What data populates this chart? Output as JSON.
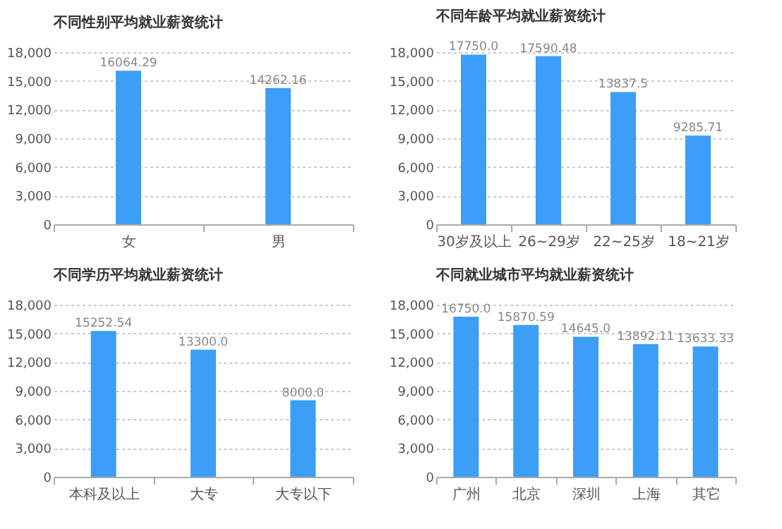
{
  "chart_data": [
    {
      "type": "bar",
      "title": "不同性别平均就业薪资统计",
      "categories": [
        "女",
        "男"
      ],
      "values": [
        16064.29,
        14262.16
      ],
      "value_labels": [
        "16064.29",
        "14262.16"
      ],
      "color": "#3c9ef7",
      "ylim": [
        0,
        18000
      ],
      "yticks": [
        {
          "value": 0,
          "label": "0"
        },
        {
          "value": 3000,
          "label": "3,000"
        },
        {
          "value": 6000,
          "label": "6,000"
        },
        {
          "value": 9000,
          "label": "9,000"
        },
        {
          "value": 12000,
          "label": "12,000"
        },
        {
          "value": 15000,
          "label": "15,000"
        },
        {
          "value": 18000,
          "label": "18,000"
        }
      ],
      "grid": "y"
    },
    {
      "type": "bar",
      "title": "不同年龄平均就业薪资统计",
      "categories": [
        "30岁及以上",
        "26~29岁",
        "22~25岁",
        "18~21岁"
      ],
      "values": [
        17750.0,
        17590.48,
        13837.5,
        9285.71
      ],
      "value_labels": [
        "17750.0",
        "17590.48",
        "13837.5",
        "9285.71"
      ],
      "color": "#3c9ef7",
      "ylim": [
        0,
        18000
      ],
      "yticks": [
        {
          "value": 0,
          "label": "0"
        },
        {
          "value": 3000,
          "label": "3,000"
        },
        {
          "value": 6000,
          "label": "6,000"
        },
        {
          "value": 9000,
          "label": "9,000"
        },
        {
          "value": 12000,
          "label": "12,000"
        },
        {
          "value": 15000,
          "label": "15,000"
        },
        {
          "value": 18000,
          "label": "18,000"
        }
      ],
      "grid": "y"
    },
    {
      "type": "bar",
      "title": "不同学历平均就业薪资统计",
      "categories": [
        "本科及以上",
        "大专",
        "大专以下"
      ],
      "values": [
        15252.54,
        13300.0,
        8000.0
      ],
      "value_labels": [
        "15252.54",
        "13300.0",
        "8000.0"
      ],
      "color": "#3c9ef7",
      "ylim": [
        0,
        18000
      ],
      "yticks": [
        {
          "value": 0,
          "label": "0"
        },
        {
          "value": 3000,
          "label": "3,000"
        },
        {
          "value": 6000,
          "label": "6,000"
        },
        {
          "value": 9000,
          "label": "9,000"
        },
        {
          "value": 12000,
          "label": "12,000"
        },
        {
          "value": 15000,
          "label": "15,000"
        },
        {
          "value": 18000,
          "label": "18,000"
        }
      ],
      "grid": "y"
    },
    {
      "type": "bar",
      "title": "不同就业城市平均就业薪资统计",
      "categories": [
        "广州",
        "北京",
        "深圳",
        "上海",
        "其它"
      ],
      "values": [
        16750.0,
        15870.59,
        14645.0,
        13892.11,
        13633.33
      ],
      "value_labels": [
        "16750.0",
        "15870.59",
        "14645.0",
        "13892.11",
        "13633.33"
      ],
      "color": "#3c9ef7",
      "ylim": [
        0,
        18000
      ],
      "yticks": [
        {
          "value": 0,
          "label": "0"
        },
        {
          "value": 3000,
          "label": "3,000"
        },
        {
          "value": 6000,
          "label": "6,000"
        },
        {
          "value": 9000,
          "label": "9,000"
        },
        {
          "value": 12000,
          "label": "12,000"
        },
        {
          "value": 15000,
          "label": "15,000"
        },
        {
          "value": 18000,
          "label": "18,000"
        }
      ],
      "grid": "y"
    }
  ]
}
